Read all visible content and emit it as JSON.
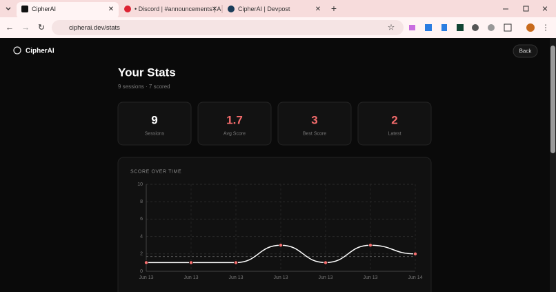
{
  "browser": {
    "tabs": [
      {
        "title": "CipherAI"
      },
      {
        "title": "• Discord | #announcements | A"
      },
      {
        "title": "CipherAI | Devpost"
      }
    ],
    "url": "cipherai.dev/stats"
  },
  "app": {
    "brand": "CipherAI",
    "back": "Back",
    "title": "Your Stats",
    "subtitle": "9 sessions · 7 scored",
    "cards": [
      {
        "value": 9,
        "label": "Sessions"
      },
      {
        "value": 1.7,
        "label": "Avg Score"
      },
      {
        "value": 3,
        "label": "Best Score"
      },
      {
        "value": 2,
        "label": "Latest"
      }
    ]
  },
  "chart_data": {
    "type": "line",
    "title": "SCORE OVER TIME",
    "x": [
      "Jun 13",
      "Jun 13",
      "Jun 13",
      "Jun 13",
      "Jun 13",
      "Jun 13",
      "Jun 14"
    ],
    "series": [
      {
        "color": "#ffffff",
        "marker_color": "#f87171",
        "values": [
          1,
          1,
          1,
          3,
          1,
          3,
          2
        ]
      }
    ],
    "ylim": [
      0,
      10
    ],
    "yticks": [
      0,
      2,
      4,
      6,
      8,
      10
    ],
    "grid": true
  }
}
